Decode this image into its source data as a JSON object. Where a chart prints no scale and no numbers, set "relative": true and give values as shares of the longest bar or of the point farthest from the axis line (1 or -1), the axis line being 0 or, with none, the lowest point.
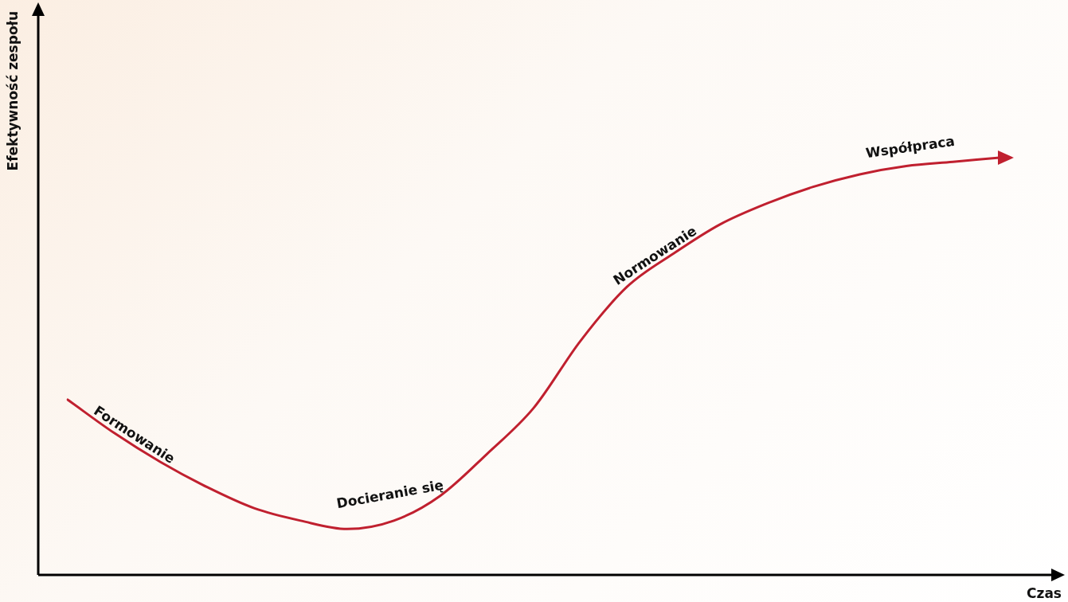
{
  "chart_data": {
    "type": "line",
    "relative": true,
    "xlabel": "Czas",
    "ylabel": "Efektywność zespołu",
    "categories": [
      null,
      null,
      null,
      null,
      null,
      null,
      null,
      null,
      null,
      null,
      null,
      null,
      null,
      null,
      null,
      null,
      null,
      null,
      null,
      null,
      null
    ],
    "series": [
      {
        "color": "#c0202f",
        "values": [
          0.42,
          0.34,
          0.27,
          0.21,
          0.16,
          0.13,
          0.11,
          0.13,
          0.19,
          0.29,
          0.4,
          0.56,
          0.69,
          0.77,
          0.84,
          0.89,
          0.93,
          0.96,
          0.98,
          0.99,
          1
        ]
      }
    ],
    "annotations": [
      "Formowanie",
      "Docieranie się",
      "Normowanie",
      "Współpraca"
    ],
    "legend": false,
    "marker": "none",
    "line_style": "solid"
  }
}
